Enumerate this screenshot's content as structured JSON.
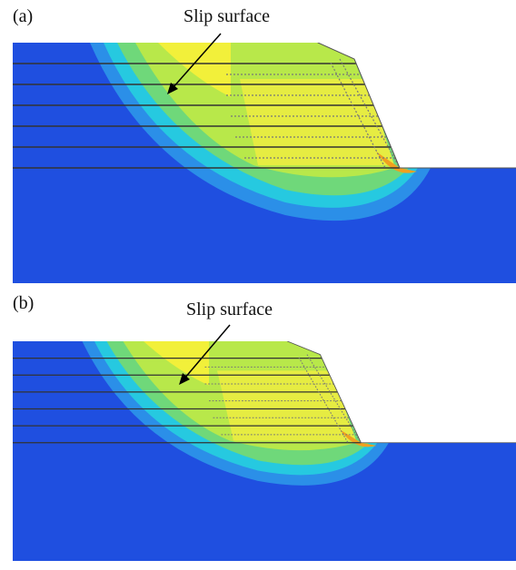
{
  "panels": [
    {
      "label": "(a)",
      "annotation": "Slip surface"
    },
    {
      "label": "(b)",
      "annotation": "Slip surface"
    }
  ]
}
